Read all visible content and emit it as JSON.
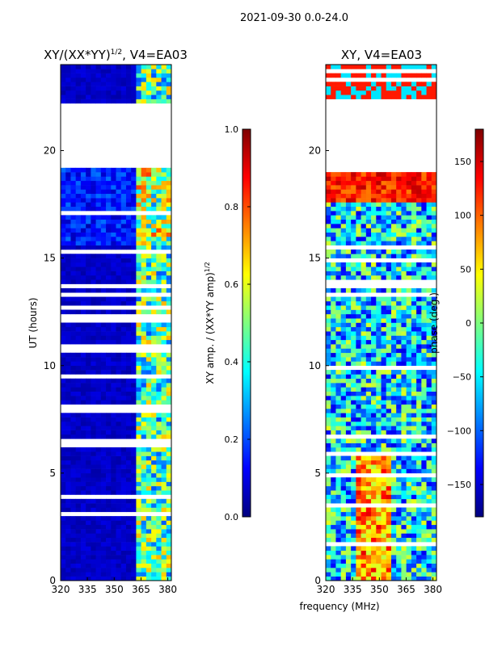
{
  "figure": {
    "suptitle": "2021-09-30 0.0-24.0",
    "xlabel_shared": "frequency (MHz)"
  },
  "colormaps": {
    "jet": [
      "#00007f",
      "#0000ff",
      "#007fff",
      "#00ffff",
      "#7fff7f",
      "#ffff00",
      "#ff7f00",
      "#ff0000",
      "#7f0000"
    ]
  },
  "chart_data": [
    {
      "type": "heatmap",
      "title_main": "XY/(XX*YY)",
      "title_sup": "1/2",
      "title_rest": ", V4=EA03",
      "xlabel": "",
      "ylabel": "UT (hours)",
      "xlim": [
        320,
        382
      ],
      "ylim": [
        0,
        24
      ],
      "xticks": [
        "320",
        "335",
        "350",
        "365",
        "380"
      ],
      "xtick_values": [
        320,
        335,
        350,
        365,
        380
      ],
      "yticks": [
        "0",
        "5",
        "10",
        "15",
        "20"
      ],
      "ytick_values": [
        0,
        5,
        10,
        15,
        20
      ],
      "data_gaps_hours": [
        [
          19.2,
          22.3
        ]
      ],
      "colorbar": {
        "label_main": "XY amp. / (XX*YY amp)",
        "label_sup": "1/2",
        "range": [
          0.0,
          1.0
        ],
        "ticks": [
          "0.0",
          "0.2",
          "0.4",
          "0.6",
          "0.8",
          "1.0"
        ],
        "tick_values": [
          0.0,
          0.2,
          0.4,
          0.6,
          0.8,
          1.0
        ]
      }
    },
    {
      "type": "heatmap",
      "title_main": "XY, V4=EA03",
      "xlabel": "frequency (MHz)",
      "ylabel": "",
      "xlim": [
        320,
        382
      ],
      "ylim": [
        0,
        24
      ],
      "xticks": [
        "320",
        "335",
        "350",
        "365",
        "380"
      ],
      "xtick_values": [
        320,
        335,
        350,
        365,
        380
      ],
      "yticks": [
        "0",
        "5",
        "10",
        "15",
        "20"
      ],
      "ytick_values": [
        0,
        5,
        10,
        15,
        20
      ],
      "data_gaps_hours": [
        [
          19.2,
          22.3
        ]
      ],
      "colorbar": {
        "label": "phase (deg.)",
        "range": [
          -180,
          180
        ],
        "ticks": [
          "−150",
          "−100",
          "−50",
          "0",
          "50",
          "100",
          "150"
        ],
        "tick_values": [
          -150,
          -100,
          -50,
          0,
          50,
          100,
          150
        ]
      }
    }
  ]
}
